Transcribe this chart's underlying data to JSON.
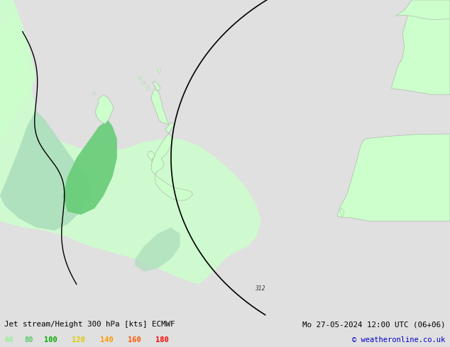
{
  "title_left": "Jet stream/Height 300 hPa [kts] ECMWF",
  "title_right": "Mo 27-05-2024 12:00 UTC (06+06)",
  "copyright": "© weatheronline.co.uk",
  "legend_values": [
    "60",
    "80",
    "100",
    "120",
    "140",
    "160",
    "180"
  ],
  "legend_colors": [
    "#99ee99",
    "#55cc66",
    "#00aa00",
    "#ddcc00",
    "#ff9900",
    "#ff5500",
    "#ff0000"
  ],
  "bg_color": "#e0e0e0",
  "ocean_color": "#e0e0e0",
  "land_color": "#ccffcc",
  "land_edge": "#aaaaaa",
  "wind_60_color": "#ccffcc",
  "wind_80_color": "#aaeebb",
  "wind_100_color": "#66dd88",
  "contour_color": "#000000",
  "label_312_color": "#333333",
  "bottom_bar_color": "#d0d0d0",
  "figsize": [
    6.34,
    4.9
  ],
  "dpi": 100
}
